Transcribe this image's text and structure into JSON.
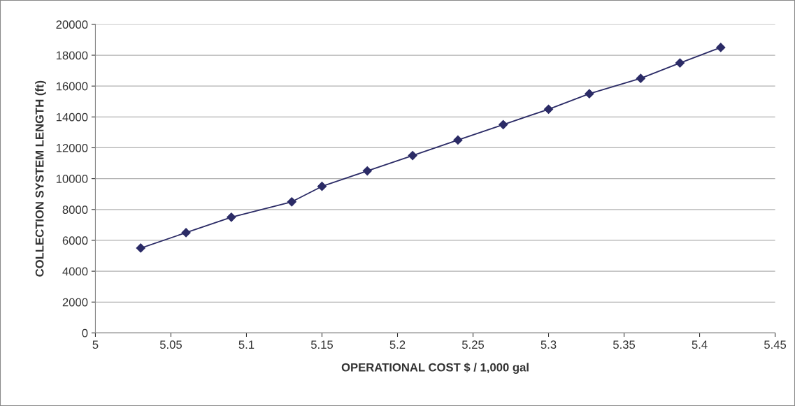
{
  "chart_data": {
    "type": "line",
    "xlabel": "OPERATIONAL COST $ / 1,000 gal",
    "ylabel": "COLLECTION SYSTEM LENGTH (ft)",
    "x": [
      5.03,
      5.06,
      5.09,
      5.13,
      5.15,
      5.18,
      5.21,
      5.24,
      5.27,
      5.3,
      5.327,
      5.361,
      5.387,
      5.414
    ],
    "series": [
      {
        "color": "#2b2b66",
        "values": [
          5500,
          6500,
          7500,
          8500,
          9500,
          10500,
          11500,
          12500,
          13500,
          14500,
          15500,
          16500,
          17500,
          18500
        ]
      }
    ],
    "xlim": [
      5,
      5.45
    ],
    "xticks": [
      5,
      5.05,
      5.1,
      5.15,
      5.2,
      5.25,
      5.3,
      5.35,
      5.4,
      5.45
    ],
    "ylim": [
      0,
      20000
    ],
    "yticks": [
      0,
      2000,
      4000,
      6000,
      8000,
      10000,
      12000,
      14000,
      16000,
      18000,
      20000
    ],
    "grid": "y",
    "marker": "diamond",
    "line_style": "solid"
  }
}
